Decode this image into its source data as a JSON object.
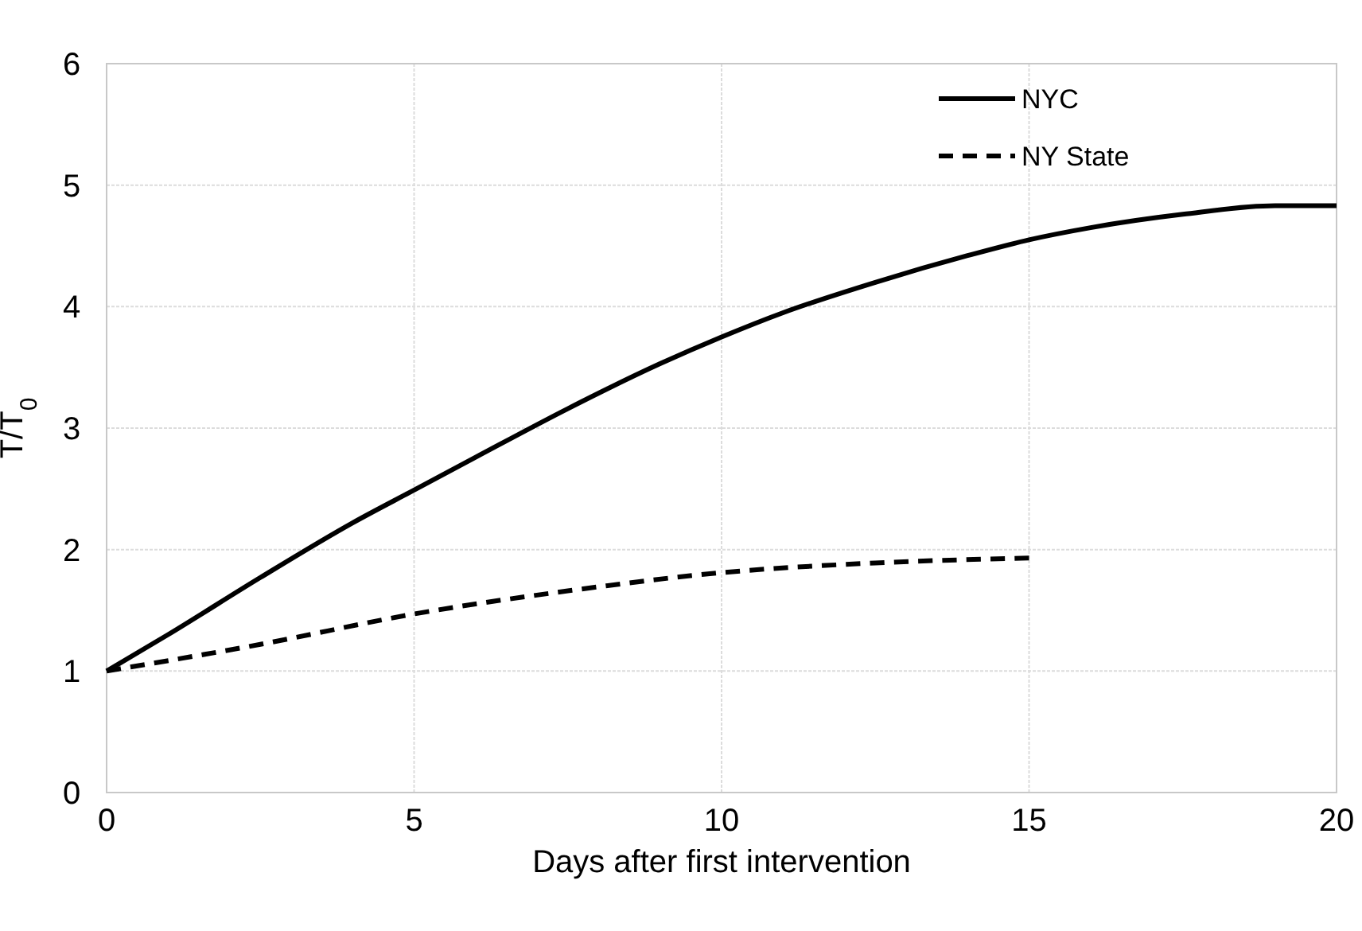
{
  "chart_data": {
    "type": "line",
    "xlabel": "Days after first intervention",
    "ylabel": "T/T$_{0}$",
    "xlim": [
      0,
      20
    ],
    "xticks": [
      0,
      5,
      10,
      15,
      20
    ],
    "ylim": [
      0,
      6
    ],
    "yticks": [
      0,
      1,
      2,
      3,
      4,
      5,
      6
    ],
    "grid": true,
    "legend": "top right",
    "series": [
      {
        "name": "NYC",
        "color": "#000000",
        "line_style": "solid",
        "x": [
          0,
          1,
          2.5,
          4,
          5,
          6,
          7.5,
          9,
          10,
          11,
          12.5,
          14,
          15,
          16,
          17.5,
          19,
          20
        ],
        "values": [
          1,
          1.3,
          1.77,
          2.22,
          2.49,
          2.76,
          3.16,
          3.53,
          3.75,
          3.95,
          4.2,
          4.42,
          4.55,
          4.65,
          4.76,
          4.83,
          4.83
        ]
      },
      {
        "name": "NY State",
        "color": "#000000",
        "line_style": "dashed",
        "x": [
          0,
          2.5,
          5,
          7.5,
          10,
          12.5,
          15
        ],
        "values": [
          1,
          1.22,
          1.47,
          1.66,
          1.81,
          1.89,
          1.93
        ]
      }
    ]
  }
}
